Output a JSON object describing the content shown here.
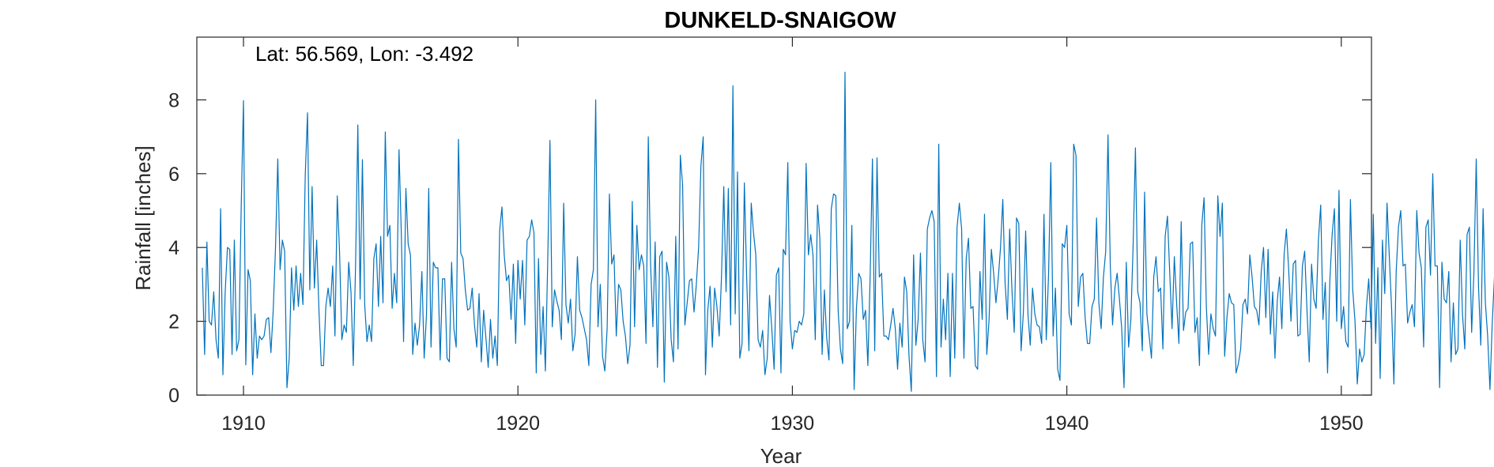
{
  "chart_data": {
    "type": "line",
    "title": "DUNKELD-SNAIGOW",
    "annotation": "Lat: 56.569, Lon: -3.492",
    "xlabel": "Year",
    "ylabel": "Rainfall [inches]",
    "xlim": [
      1908.3,
      1951.1
    ],
    "ylim": [
      0,
      9.7
    ],
    "xticks": [
      1910,
      1920,
      1930,
      1940,
      1950
    ],
    "yticks": [
      0,
      2,
      4,
      6,
      8
    ],
    "grid": false,
    "series": [
      {
        "color": "#0072BD",
        "x_start": 1908.5,
        "x_step": 0.0833333,
        "values": [
          3.45,
          1.1,
          4.15,
          2.0,
          1.9,
          2.8,
          1.5,
          1.0,
          5.05,
          0.55,
          2.8,
          4.0,
          3.95,
          1.1,
          4.2,
          1.2,
          1.5,
          5.1,
          7.98,
          0.82,
          3.4,
          3.1,
          0.55,
          2.2,
          1.0,
          1.6,
          1.5,
          1.6,
          2.05,
          2.1,
          1.15,
          2.3,
          4.0,
          6.4,
          3.4,
          4.2,
          3.9,
          0.2,
          1.0,
          3.45,
          2.3,
          3.5,
          2.4,
          3.3,
          2.45,
          5.95,
          7.65,
          2.85,
          5.65,
          2.9,
          4.2,
          2.3,
          0.8,
          0.8,
          2.4,
          2.9,
          2.4,
          3.5,
          1.6,
          5.4,
          3.9,
          1.5,
          1.9,
          1.7,
          3.6,
          2.8,
          0.8,
          3.5,
          7.32,
          2.6,
          6.38,
          2.45,
          1.45,
          1.9,
          1.45,
          3.7,
          4.1,
          2.4,
          4.3,
          2.5,
          7.13,
          4.3,
          4.6,
          2.35,
          3.3,
          2.5,
          6.65,
          4.4,
          1.45,
          5.6,
          4.1,
          3.8,
          1.1,
          1.95,
          1.35,
          1.9,
          3.35,
          1.0,
          2.15,
          5.6,
          1.3,
          3.6,
          3.45,
          3.45,
          0.95,
          3.15,
          3.15,
          1.0,
          0.9,
          3.6,
          1.8,
          1.3,
          6.93,
          3.85,
          3.7,
          2.85,
          2.3,
          2.35,
          2.9,
          1.9,
          1.3,
          2.75,
          0.9,
          2.3,
          1.55,
          0.75,
          2.05,
          1.0,
          1.6,
          0.8,
          4.45,
          5.1,
          3.8,
          3.1,
          3.25,
          2.05,
          3.55,
          1.4,
          3.65,
          2.6,
          3.65,
          1.9,
          4.2,
          4.3,
          4.75,
          4.4,
          0.6,
          3.7,
          1.1,
          2.4,
          0.65,
          3.55,
          6.9,
          1.85,
          2.85,
          2.55,
          2.3,
          1.5,
          5.2,
          2.45,
          1.95,
          2.6,
          1.2,
          1.65,
          3.75,
          2.3,
          2.1,
          1.8,
          1.5,
          0.8,
          3.0,
          3.4,
          8.0,
          1.85,
          3.0,
          1.05,
          0.65,
          1.8,
          5.45,
          3.55,
          3.8,
          1.6,
          3.0,
          2.85,
          2.0,
          1.6,
          0.85,
          1.35,
          5.25,
          1.85,
          4.6,
          3.4,
          3.8,
          3.5,
          1.4,
          7.0,
          3.55,
          1.85,
          4.15,
          0.75,
          3.75,
          3.9,
          0.35,
          3.6,
          3.2,
          1.5,
          0.9,
          4.3,
          1.25,
          6.5,
          5.7,
          1.9,
          2.5,
          3.1,
          3.15,
          2.25,
          3.0,
          4.0,
          6.2,
          7.0,
          0.55,
          2.3,
          2.95,
          1.3,
          2.9,
          2.4,
          1.6,
          3.2,
          5.65,
          2.8,
          5.6,
          1.9,
          8.38,
          2.2,
          6.05,
          1.0,
          1.4,
          5.75,
          3.2,
          1.2,
          5.2,
          4.4,
          3.8,
          1.5,
          1.3,
          1.75,
          0.55,
          1.0,
          2.7,
          1.8,
          0.7,
          3.25,
          3.45,
          0.6,
          3.95,
          3.8,
          6.3,
          2.0,
          1.25,
          1.75,
          1.7,
          2.0,
          1.9,
          2.2,
          6.28,
          3.8,
          4.35,
          3.8,
          1.5,
          5.15,
          4.25,
          1.1,
          2.85,
          1.55,
          0.95,
          5.05,
          5.45,
          5.4,
          2.3,
          1.25,
          0.85,
          8.75,
          1.8,
          2.0,
          4.6,
          0.15,
          2.35,
          3.3,
          3.15,
          2.05,
          2.3,
          0.8,
          3.2,
          6.4,
          1.2,
          6.43,
          3.2,
          3.3,
          1.6,
          1.6,
          1.5,
          1.9,
          2.35,
          1.8,
          0.7,
          1.95,
          1.3,
          3.2,
          2.8,
          1.05,
          0.1,
          3.8,
          1.35,
          2.05,
          3.85,
          1.5,
          0.9,
          4.5,
          4.8,
          5.0,
          4.7,
          0.5,
          6.8,
          1.3,
          2.6,
          1.5,
          3.3,
          0.5,
          3.3,
          1.0,
          4.55,
          5.2,
          4.5,
          1.0,
          3.7,
          4.25,
          2.35,
          2.4,
          0.8,
          0.7,
          3.35,
          2.05,
          4.9,
          1.1,
          2.05,
          3.95,
          3.3,
          2.5,
          3.15,
          4.0,
          5.3,
          3.05,
          2.05,
          4.5,
          2.85,
          1.7,
          4.8,
          4.65,
          1.2,
          2.25,
          4.45,
          2.2,
          1.35,
          2.9,
          2.2,
          1.9,
          1.85,
          1.4,
          4.9,
          1.5,
          3.25,
          6.3,
          1.6,
          2.9,
          0.7,
          0.4,
          4.1,
          4.0,
          4.6,
          2.2,
          1.9,
          6.8,
          6.5,
          2.4,
          3.2,
          3.3,
          2.1,
          1.4,
          1.4,
          2.4,
          2.6,
          4.8,
          2.5,
          1.8,
          3.2,
          3.9,
          7.05,
          3.5,
          1.9,
          2.9,
          3.3,
          2.6,
          1.8,
          0.2,
          3.6,
          1.3,
          2.05,
          4.1,
          6.7,
          2.8,
          2.5,
          1.2,
          5.5,
          2.2,
          1.6,
          1.0,
          3.2,
          3.75,
          2.8,
          2.9,
          1.25,
          4.3,
          4.85,
          3.3,
          1.8,
          3.75,
          2.5,
          1.4,
          4.7,
          1.75,
          2.25,
          2.35,
          4.1,
          4.15,
          1.7,
          2.1,
          0.8,
          4.6,
          5.35,
          2.4,
          1.1,
          2.2,
          1.8,
          1.6,
          5.4,
          4.3,
          5.2,
          1.05,
          2.1,
          2.75,
          2.5,
          2.45,
          0.6,
          0.85,
          1.25,
          2.45,
          2.6,
          2.2,
          3.8,
          3.2,
          2.4,
          2.3,
          1.9,
          3.35,
          4.0,
          2.1,
          3.95,
          1.65,
          2.8,
          1.0,
          2.55,
          3.2,
          1.8,
          3.8,
          4.5,
          3.4,
          2.0,
          3.55,
          3.65,
          1.6,
          1.65,
          3.5,
          3.9,
          2.3,
          0.9,
          3.55,
          2.6,
          2.35,
          4.2,
          5.15,
          2.05,
          3.05,
          0.6,
          3.1,
          4.35,
          5.05,
          2.0,
          5.55,
          1.8,
          2.4,
          1.45,
          1.3,
          5.3,
          2.85,
          2.0,
          0.3,
          1.25,
          0.9,
          1.1,
          2.4,
          3.15,
          1.8,
          4.9,
          1.4,
          3.45,
          0.45,
          4.2,
          2.75,
          5.2,
          3.75,
          2.35,
          0.3,
          3.35,
          4.55,
          5.0,
          3.5,
          3.55,
          1.95,
          2.25,
          2.45,
          1.85,
          5.0,
          3.85,
          3.45,
          1.3,
          4.55,
          4.75,
          3.25,
          6.0,
          3.5,
          3.5,
          0.2,
          3.6,
          2.6,
          2.5,
          3.35,
          0.9,
          2.5,
          1.1,
          1.25,
          4.2,
          2.2,
          1.25,
          4.35,
          4.55,
          1.7,
          3.35,
          6.4,
          2.95,
          1.35,
          5.05,
          2.5,
          1.6,
          0.15,
          1.95,
          3.25,
          2.0,
          2.4,
          3.55,
          2.95,
          1.45,
          1.3,
          2.7,
          1.9,
          2.95,
          3.4,
          3.2,
          3.0,
          2.5,
          2.7,
          5.55,
          4.35,
          4.6,
          2.45,
          4.45,
          1.9,
          1.7,
          3.05,
          1.65,
          4.0,
          4.9,
          3.25,
          3.7,
          1.5,
          2.45,
          2.6,
          1.9,
          2.4,
          5.15,
          3.05,
          3.9,
          1.0,
          6.4,
          4.1,
          1.7,
          5.0,
          2.95,
          4.6,
          1.1,
          3.55,
          0.95,
          2.15,
          1.45,
          6.1,
          1.55,
          5.95,
          3.3,
          1.05,
          4.65,
          2.1,
          1.05,
          1.95,
          4.3,
          2.1,
          3.55,
          2.6,
          4.05,
          2.8,
          1.65,
          1.45,
          1.3,
          5.2,
          3.2,
          3.65,
          2.9,
          4.9,
          7.8,
          3.4,
          3.0,
          3.5,
          6.4,
          2.35,
          3.6,
          1.5,
          2.7,
          4.05,
          1.45,
          1.0,
          3.45,
          5.2,
          2.75,
          1.45,
          4.05,
          3.6,
          2.4,
          2.55,
          3.45,
          1.85,
          2.8,
          2.35,
          1.3,
          1.35,
          3.8,
          3.95,
          4.45,
          5.55,
          2.75,
          3.55,
          1.5
        ]
      }
    ]
  }
}
